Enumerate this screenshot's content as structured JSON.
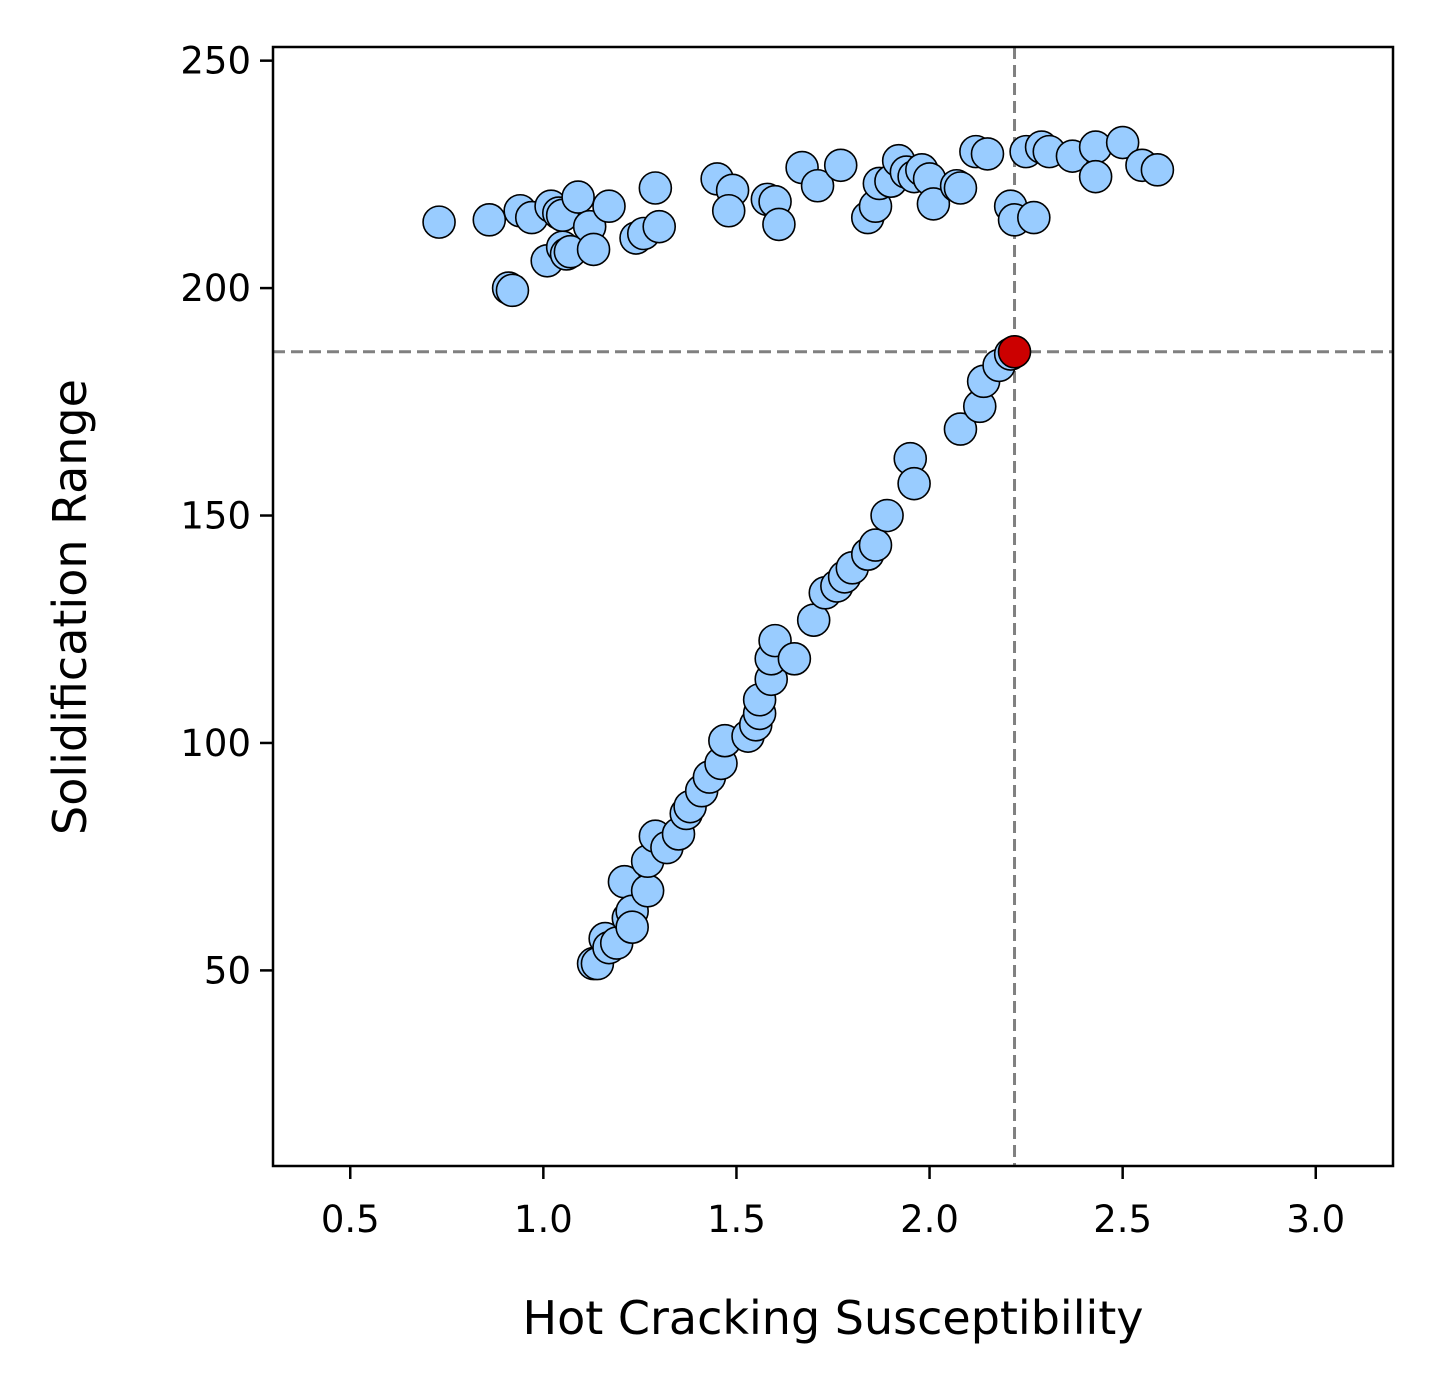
{
  "chart_data": {
    "type": "scatter",
    "title": "",
    "xlabel": "Hot Cracking Susceptibility",
    "ylabel": "Solidification Range",
    "xlim": [
      0.3,
      3.2
    ],
    "ylim": [
      7,
      253
    ],
    "xticks": [
      0.5,
      1.0,
      1.5,
      2.0,
      2.5,
      3.0
    ],
    "xtick_labels": [
      "0.5",
      "1.0",
      "1.5",
      "2.0",
      "2.5",
      "3.0"
    ],
    "yticks": [
      50,
      100,
      150,
      200,
      250
    ],
    "ytick_labels": [
      "50",
      "100",
      "150",
      "200",
      "250"
    ],
    "grid": false,
    "legend": "none",
    "reference_lines": {
      "x": 2.22,
      "y": 186,
      "color": "#808080",
      "style": "dashed"
    },
    "series": [
      {
        "color": "#99ccff",
        "edge_color": "#000000",
        "points": [
          [
            0.73,
            214.5
          ],
          [
            0.86,
            215
          ],
          [
            0.91,
            200
          ],
          [
            0.92,
            199.5
          ],
          [
            0.94,
            217
          ],
          [
            0.97,
            215.5
          ],
          [
            1.01,
            206
          ],
          [
            1.02,
            218
          ],
          [
            1.04,
            216.5
          ],
          [
            1.05,
            216
          ],
          [
            1.05,
            209
          ],
          [
            1.06,
            207.5
          ],
          [
            1.07,
            208
          ],
          [
            1.09,
            220
          ],
          [
            1.12,
            213.5
          ],
          [
            1.13,
            208.5
          ],
          [
            1.17,
            218
          ],
          [
            1.24,
            211
          ],
          [
            1.26,
            212
          ],
          [
            1.29,
            222
          ],
          [
            1.3,
            213.5
          ],
          [
            1.45,
            224
          ],
          [
            1.49,
            221.5
          ],
          [
            1.48,
            217
          ],
          [
            1.58,
            219.5
          ],
          [
            1.6,
            219
          ],
          [
            1.61,
            214
          ],
          [
            1.67,
            226.5
          ],
          [
            1.71,
            222.5
          ],
          [
            1.77,
            227
          ],
          [
            1.84,
            215.5
          ],
          [
            1.86,
            218
          ],
          [
            1.87,
            223
          ],
          [
            1.9,
            223.5
          ],
          [
            1.92,
            228
          ],
          [
            1.94,
            225.5
          ],
          [
            1.96,
            224.5
          ],
          [
            1.98,
            226
          ],
          [
            2.0,
            224
          ],
          [
            2.01,
            218.5
          ],
          [
            2.07,
            222.5
          ],
          [
            2.08,
            222
          ],
          [
            2.12,
            230
          ],
          [
            2.15,
            229.5
          ],
          [
            2.21,
            218
          ],
          [
            2.22,
            215
          ],
          [
            2.25,
            230
          ],
          [
            2.27,
            215.5
          ],
          [
            2.29,
            231
          ],
          [
            2.31,
            230
          ],
          [
            2.37,
            229
          ],
          [
            2.43,
            231
          ],
          [
            2.43,
            224.5
          ],
          [
            2.5,
            232
          ],
          [
            2.55,
            227
          ],
          [
            2.59,
            226
          ],
          [
            1.13,
            51.5
          ],
          [
            1.14,
            51.5
          ],
          [
            1.16,
            57
          ],
          [
            1.17,
            55
          ],
          [
            1.19,
            56
          ],
          [
            1.21,
            69.5
          ],
          [
            1.22,
            61.5
          ],
          [
            1.23,
            63
          ],
          [
            1.23,
            59.5
          ],
          [
            1.27,
            67.5
          ],
          [
            1.27,
            74
          ],
          [
            1.29,
            79.5
          ],
          [
            1.32,
            77
          ],
          [
            1.35,
            80
          ],
          [
            1.37,
            84.5
          ],
          [
            1.38,
            86
          ],
          [
            1.41,
            89.5
          ],
          [
            1.43,
            92.5
          ],
          [
            1.46,
            95.5
          ],
          [
            1.47,
            100.5
          ],
          [
            1.53,
            101.5
          ],
          [
            1.55,
            104
          ],
          [
            1.56,
            106.5
          ],
          [
            1.56,
            109.5
          ],
          [
            1.59,
            114
          ],
          [
            1.59,
            118.5
          ],
          [
            1.6,
            122.5
          ],
          [
            1.65,
            118.5
          ],
          [
            1.7,
            127
          ],
          [
            1.73,
            133
          ],
          [
            1.76,
            134.5
          ],
          [
            1.78,
            136.5
          ],
          [
            1.8,
            138.5
          ],
          [
            1.84,
            141.5
          ],
          [
            1.86,
            143.5
          ],
          [
            1.89,
            150
          ],
          [
            1.95,
            162.5
          ],
          [
            1.96,
            157
          ],
          [
            2.08,
            169
          ],
          [
            2.13,
            174
          ],
          [
            2.14,
            179.5
          ],
          [
            2.18,
            183
          ],
          [
            2.21,
            185.5
          ]
        ]
      },
      {
        "color": "#cc0000",
        "edge_color": "#000000",
        "points": [
          [
            2.22,
            186
          ]
        ]
      }
    ]
  }
}
